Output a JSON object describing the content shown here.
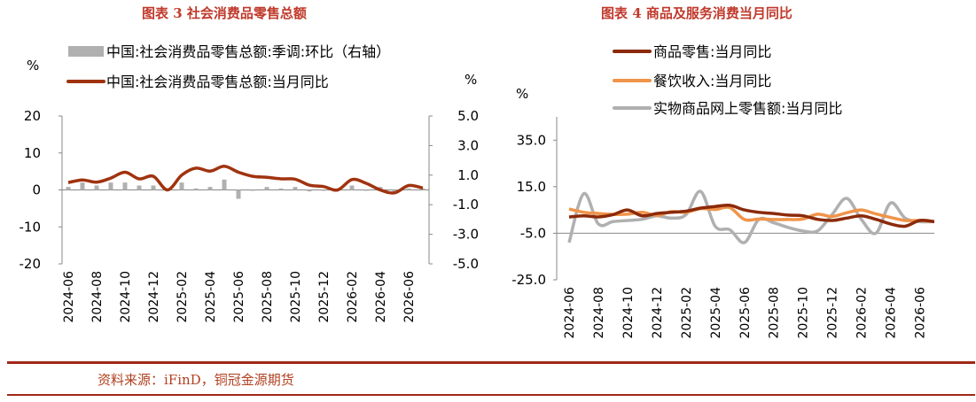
{
  "left_title": "图表 3 社会消费品零售总额",
  "right_title": "图表 4 商品及服务消费当月同比",
  "source": "资料来源：iFinD，铜冠金源期货",
  "chart_data": [
    {
      "type": "bar+line",
      "title": "图表 3 社会消费品零售总额",
      "left_unit": "%",
      "right_unit": "%",
      "ylim_left": [
        -20,
        20
      ],
      "left_ticks": [
        "20",
        "10",
        "0",
        "-10",
        "-20"
      ],
      "ylim_right": [
        -5,
        5
      ],
      "right_ticks": [
        "5.0",
        "3.0",
        "1.0",
        "-1.0",
        "-3.0",
        "-5.0"
      ],
      "x": [
        "2024-06",
        "2024-07",
        "2024-08",
        "2024-09",
        "2024-10",
        "2024-11",
        "2024-12",
        "2025-01",
        "2025-02",
        "2025-03",
        "2025-04",
        "2025-05",
        "2025-06",
        "2025-07",
        "2025-08",
        "2025-09",
        "2025-10",
        "2025-11",
        "2025-12",
        "2026-01",
        "2026-02",
        "2026-03",
        "2026-04",
        "2026-05",
        "2026-06",
        "2026-07"
      ],
      "x_tick_labels": [
        "2024-06",
        "2024-08",
        "2024-10",
        "2024-12",
        "2025-02",
        "2025-04",
        "2025-06",
        "2025-08",
        "2025-10",
        "2025-12",
        "2026-02",
        "2026-04",
        "2026-06"
      ],
      "series": [
        {
          "name": "中国:社会消费品零售总额:季调:环比（右轴）",
          "kind": "bar",
          "axis": "right",
          "color": "#b0b0b0",
          "values": [
            0.2,
            0.5,
            0.3,
            0.5,
            0.5,
            0.3,
            0.3,
            0.1,
            0.5,
            0.1,
            0.2,
            0.7,
            -0.6,
            0.0,
            0.2,
            0.1,
            0.2,
            -0.1,
            0.0,
            0.1,
            0.3,
            0.0,
            0.2,
            -0.2,
            0.1,
            0.1
          ]
        },
        {
          "name": "中国:社会消费品零售总额:当月同比",
          "kind": "line",
          "axis": "left",
          "color": "#a0330f",
          "values": [
            2.0,
            2.7,
            2.1,
            3.2,
            4.8,
            3.0,
            3.7,
            0.0,
            4.0,
            5.9,
            5.1,
            6.4,
            4.8,
            3.7,
            3.4,
            3.0,
            2.9,
            1.3,
            0.9,
            0.0,
            2.8,
            1.8,
            0.0,
            -0.8,
            1.2,
            0.5
          ]
        }
      ]
    },
    {
      "type": "line",
      "title": "图表 4 商品及服务消费当月同比",
      "unit": "%",
      "ylim": [
        -25,
        45
      ],
      "y_ticks": [
        "35.0",
        "15.0",
        "-5.0",
        "-25.0"
      ],
      "x": [
        "2024-06",
        "2024-07",
        "2024-08",
        "2024-09",
        "2024-10",
        "2024-11",
        "2024-12",
        "2025-01",
        "2025-02",
        "2025-03",
        "2025-04",
        "2025-05",
        "2025-06",
        "2025-07",
        "2025-08",
        "2025-09",
        "2025-10",
        "2025-11",
        "2025-12",
        "2026-01",
        "2026-02",
        "2026-03",
        "2026-04",
        "2026-05",
        "2026-06",
        "2026-07"
      ],
      "x_tick_labels": [
        "2024-06",
        "2024-08",
        "2024-10",
        "2024-12",
        "2025-02",
        "2025-04",
        "2025-06",
        "2025-08",
        "2025-10",
        "2025-12",
        "2026-02",
        "2026-04",
        "2026-06"
      ],
      "series": [
        {
          "name": "商品零售:当月同比",
          "color": "#8b2a0a",
          "values": [
            2.0,
            2.5,
            2.0,
            3.0,
            5.0,
            2.5,
            3.5,
            4.0,
            4.5,
            5.8,
            6.5,
            7.0,
            5.0,
            4.0,
            3.5,
            2.8,
            2.5,
            1.0,
            0.5,
            1.5,
            2.5,
            1.0,
            -1.0,
            -2.0,
            0.5,
            0.0
          ]
        },
        {
          "name": "餐饮收入:当月同比",
          "color": "#f0944a",
          "values": [
            5.4,
            4.0,
            3.5,
            3.1,
            3.2,
            4.0,
            2.7,
            4.3,
            4.0,
            5.6,
            5.2,
            6.0,
            0.9,
            1.1,
            0.9,
            0.9,
            1.1,
            3.2,
            2.2,
            3.8,
            5.0,
            3.3,
            1.8,
            0.5,
            0.5,
            0.0
          ]
        },
        {
          "name": "实物商品网上零售额:当月同比",
          "color": "#b0b0b0",
          "values": [
            -9.0,
            12.0,
            -1.0,
            0.0,
            0.5,
            1.0,
            2.5,
            1.5,
            3.0,
            13.0,
            -2.0,
            -3.5,
            -9.0,
            1.0,
            -0.5,
            -2.5,
            -4.0,
            -4.0,
            3.0,
            10.0,
            1.0,
            -5.0,
            8.0,
            1.5,
            0.0,
            0.0
          ]
        }
      ]
    }
  ]
}
